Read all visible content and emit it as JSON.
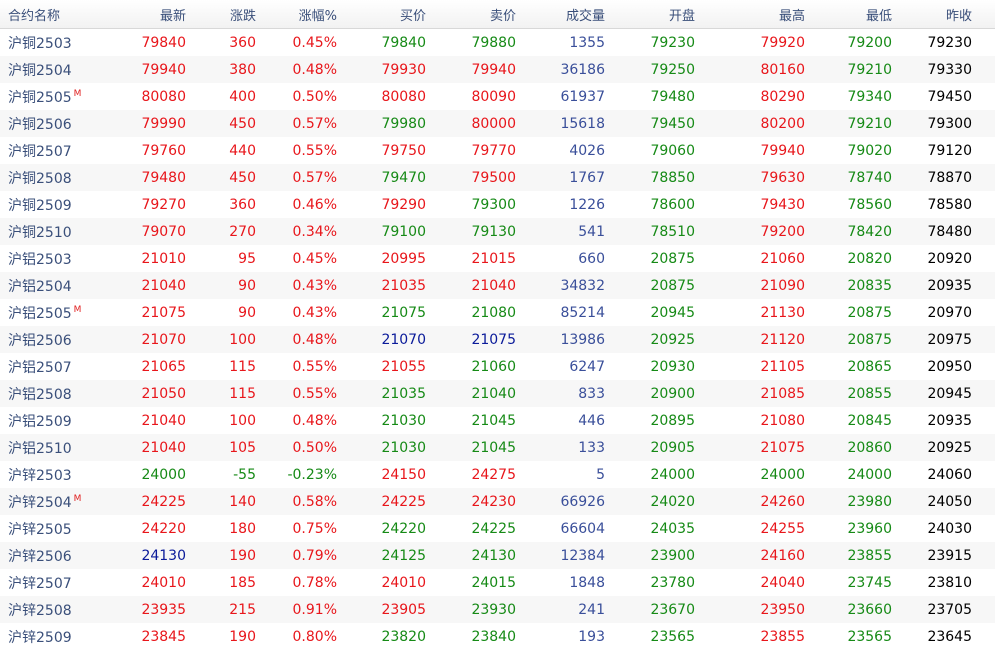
{
  "columns": [
    "合约名称",
    "最新",
    "涨跌",
    "涨幅%",
    "买价",
    "卖价",
    "成交量",
    "开盘",
    "最高",
    "最低",
    "昨收"
  ],
  "colors": {
    "up": "#e8161b",
    "down": "#168a16",
    "volume": "#3a4f9a",
    "flat": "#000000",
    "highlight": "#0b1b9a"
  },
  "rows": [
    {
      "name": "沪铜2503",
      "badge": "",
      "last": "79840",
      "chg": "360",
      "pct": "0.45%",
      "bid": "79840",
      "ask": "79880",
      "vol": "1355",
      "open": "79230",
      "high": "79920",
      "low": "79200",
      "prev": "79230",
      "last_c": "red",
      "chg_c": "red",
      "pct_c": "red",
      "bid_c": "green",
      "ask_c": "green",
      "open_c": "green",
      "high_c": "red",
      "low_c": "green"
    },
    {
      "name": "沪铜2504",
      "badge": "",
      "last": "79940",
      "chg": "380",
      "pct": "0.48%",
      "bid": "79930",
      "ask": "79940",
      "vol": "36186",
      "open": "79250",
      "high": "80160",
      "low": "79210",
      "prev": "79330",
      "last_c": "red",
      "chg_c": "red",
      "pct_c": "red",
      "bid_c": "red",
      "ask_c": "red",
      "open_c": "green",
      "high_c": "red",
      "low_c": "green"
    },
    {
      "name": "沪铜2505",
      "badge": "M",
      "last": "80080",
      "chg": "400",
      "pct": "0.50%",
      "bid": "80080",
      "ask": "80090",
      "vol": "61937",
      "open": "79480",
      "high": "80290",
      "low": "79340",
      "prev": "79450",
      "last_c": "red",
      "chg_c": "red",
      "pct_c": "red",
      "bid_c": "red",
      "ask_c": "red",
      "open_c": "green",
      "high_c": "red",
      "low_c": "green"
    },
    {
      "name": "沪铜2506",
      "badge": "",
      "last": "79990",
      "chg": "450",
      "pct": "0.57%",
      "bid": "79980",
      "ask": "80000",
      "vol": "15618",
      "open": "79450",
      "high": "80200",
      "low": "79210",
      "prev": "79300",
      "last_c": "red",
      "chg_c": "red",
      "pct_c": "red",
      "bid_c": "green",
      "ask_c": "red",
      "open_c": "green",
      "high_c": "red",
      "low_c": "green"
    },
    {
      "name": "沪铜2507",
      "badge": "",
      "last": "79760",
      "chg": "440",
      "pct": "0.55%",
      "bid": "79750",
      "ask": "79770",
      "vol": "4026",
      "open": "79060",
      "high": "79940",
      "low": "79020",
      "prev": "79120",
      "last_c": "red",
      "chg_c": "red",
      "pct_c": "red",
      "bid_c": "red",
      "ask_c": "red",
      "open_c": "green",
      "high_c": "red",
      "low_c": "green"
    },
    {
      "name": "沪铜2508",
      "badge": "",
      "last": "79480",
      "chg": "450",
      "pct": "0.57%",
      "bid": "79470",
      "ask": "79500",
      "vol": "1767",
      "open": "78850",
      "high": "79630",
      "low": "78740",
      "prev": "78870",
      "last_c": "red",
      "chg_c": "red",
      "pct_c": "red",
      "bid_c": "green",
      "ask_c": "red",
      "open_c": "green",
      "high_c": "red",
      "low_c": "green"
    },
    {
      "name": "沪铜2509",
      "badge": "",
      "last": "79270",
      "chg": "360",
      "pct": "0.46%",
      "bid": "79290",
      "ask": "79300",
      "vol": "1226",
      "open": "78600",
      "high": "79430",
      "low": "78560",
      "prev": "78580",
      "last_c": "red",
      "chg_c": "red",
      "pct_c": "red",
      "bid_c": "red",
      "ask_c": "green",
      "open_c": "green",
      "high_c": "red",
      "low_c": "green"
    },
    {
      "name": "沪铜2510",
      "badge": "",
      "last": "79070",
      "chg": "270",
      "pct": "0.34%",
      "bid": "79100",
      "ask": "79130",
      "vol": "541",
      "open": "78510",
      "high": "79200",
      "low": "78420",
      "prev": "78480",
      "last_c": "red",
      "chg_c": "red",
      "pct_c": "red",
      "bid_c": "green",
      "ask_c": "green",
      "open_c": "green",
      "high_c": "red",
      "low_c": "green"
    },
    {
      "name": "沪铝2503",
      "badge": "",
      "last": "21010",
      "chg": "95",
      "pct": "0.45%",
      "bid": "20995",
      "ask": "21015",
      "vol": "660",
      "open": "20875",
      "high": "21060",
      "low": "20820",
      "prev": "20920",
      "last_c": "red",
      "chg_c": "red",
      "pct_c": "red",
      "bid_c": "red",
      "ask_c": "red",
      "open_c": "green",
      "high_c": "red",
      "low_c": "green"
    },
    {
      "name": "沪铝2504",
      "badge": "",
      "last": "21040",
      "chg": "90",
      "pct": "0.43%",
      "bid": "21035",
      "ask": "21040",
      "vol": "34832",
      "open": "20875",
      "high": "21090",
      "low": "20835",
      "prev": "20935",
      "last_c": "red",
      "chg_c": "red",
      "pct_c": "red",
      "bid_c": "red",
      "ask_c": "red",
      "open_c": "green",
      "high_c": "red",
      "low_c": "green"
    },
    {
      "name": "沪铝2505",
      "badge": "M",
      "last": "21075",
      "chg": "90",
      "pct": "0.43%",
      "bid": "21075",
      "ask": "21080",
      "vol": "85214",
      "open": "20945",
      "high": "21130",
      "low": "20875",
      "prev": "20970",
      "last_c": "red",
      "chg_c": "red",
      "pct_c": "red",
      "bid_c": "green",
      "ask_c": "green",
      "open_c": "green",
      "high_c": "red",
      "low_c": "green"
    },
    {
      "name": "沪铝2506",
      "badge": "",
      "last": "21070",
      "chg": "100",
      "pct": "0.48%",
      "bid": "21070",
      "ask": "21075",
      "vol": "13986",
      "open": "20925",
      "high": "21120",
      "low": "20875",
      "prev": "20975",
      "last_c": "red",
      "chg_c": "red",
      "pct_c": "red",
      "bid_c": "navy",
      "ask_c": "navy",
      "open_c": "green",
      "high_c": "red",
      "low_c": "green"
    },
    {
      "name": "沪铝2507",
      "badge": "",
      "last": "21065",
      "chg": "115",
      "pct": "0.55%",
      "bid": "21055",
      "ask": "21060",
      "vol": "6247",
      "open": "20930",
      "high": "21105",
      "low": "20865",
      "prev": "20950",
      "last_c": "red",
      "chg_c": "red",
      "pct_c": "red",
      "bid_c": "red",
      "ask_c": "green",
      "open_c": "green",
      "high_c": "red",
      "low_c": "green"
    },
    {
      "name": "沪铝2508",
      "badge": "",
      "last": "21050",
      "chg": "115",
      "pct": "0.55%",
      "bid": "21035",
      "ask": "21040",
      "vol": "833",
      "open": "20900",
      "high": "21085",
      "low": "20855",
      "prev": "20945",
      "last_c": "red",
      "chg_c": "red",
      "pct_c": "red",
      "bid_c": "green",
      "ask_c": "green",
      "open_c": "green",
      "high_c": "red",
      "low_c": "green"
    },
    {
      "name": "沪铝2509",
      "badge": "",
      "last": "21040",
      "chg": "100",
      "pct": "0.48%",
      "bid": "21030",
      "ask": "21045",
      "vol": "446",
      "open": "20895",
      "high": "21080",
      "low": "20845",
      "prev": "20935",
      "last_c": "red",
      "chg_c": "red",
      "pct_c": "red",
      "bid_c": "green",
      "ask_c": "green",
      "open_c": "green",
      "high_c": "red",
      "low_c": "green"
    },
    {
      "name": "沪铝2510",
      "badge": "",
      "last": "21040",
      "chg": "105",
      "pct": "0.50%",
      "bid": "21030",
      "ask": "21045",
      "vol": "133",
      "open": "20905",
      "high": "21075",
      "low": "20860",
      "prev": "20925",
      "last_c": "red",
      "chg_c": "red",
      "pct_c": "red",
      "bid_c": "green",
      "ask_c": "green",
      "open_c": "green",
      "high_c": "red",
      "low_c": "green"
    },
    {
      "name": "沪锌2503",
      "badge": "",
      "last": "24000",
      "chg": "-55",
      "pct": "-0.23%",
      "bid": "24150",
      "ask": "24275",
      "vol": "5",
      "open": "24000",
      "high": "24000",
      "low": "24000",
      "prev": "24060",
      "last_c": "green",
      "chg_c": "green",
      "pct_c": "green",
      "bid_c": "red",
      "ask_c": "red",
      "open_c": "green",
      "high_c": "green",
      "low_c": "green"
    },
    {
      "name": "沪锌2504",
      "badge": "M",
      "last": "24225",
      "chg": "140",
      "pct": "0.58%",
      "bid": "24225",
      "ask": "24230",
      "vol": "66926",
      "open": "24020",
      "high": "24260",
      "low": "23980",
      "prev": "24050",
      "last_c": "red",
      "chg_c": "red",
      "pct_c": "red",
      "bid_c": "red",
      "ask_c": "red",
      "open_c": "green",
      "high_c": "red",
      "low_c": "green"
    },
    {
      "name": "沪锌2505",
      "badge": "",
      "last": "24220",
      "chg": "180",
      "pct": "0.75%",
      "bid": "24220",
      "ask": "24225",
      "vol": "66604",
      "open": "24035",
      "high": "24255",
      "low": "23960",
      "prev": "24030",
      "last_c": "red",
      "chg_c": "red",
      "pct_c": "red",
      "bid_c": "green",
      "ask_c": "green",
      "open_c": "green",
      "high_c": "red",
      "low_c": "green"
    },
    {
      "name": "沪锌2506",
      "badge": "",
      "last": "24130",
      "chg": "190",
      "pct": "0.79%",
      "bid": "24125",
      "ask": "24130",
      "vol": "12384",
      "open": "23900",
      "high": "24160",
      "low": "23855",
      "prev": "23915",
      "last_c": "navy",
      "chg_c": "red",
      "pct_c": "red",
      "bid_c": "green",
      "ask_c": "green",
      "open_c": "green",
      "high_c": "red",
      "low_c": "green"
    },
    {
      "name": "沪锌2507",
      "badge": "",
      "last": "24010",
      "chg": "185",
      "pct": "0.78%",
      "bid": "24010",
      "ask": "24015",
      "vol": "1848",
      "open": "23780",
      "high": "24040",
      "low": "23745",
      "prev": "23810",
      "last_c": "red",
      "chg_c": "red",
      "pct_c": "red",
      "bid_c": "red",
      "ask_c": "green",
      "open_c": "green",
      "high_c": "red",
      "low_c": "green"
    },
    {
      "name": "沪锌2508",
      "badge": "",
      "last": "23935",
      "chg": "215",
      "pct": "0.91%",
      "bid": "23905",
      "ask": "23930",
      "vol": "241",
      "open": "23670",
      "high": "23950",
      "low": "23660",
      "prev": "23705",
      "last_c": "red",
      "chg_c": "red",
      "pct_c": "red",
      "bid_c": "red",
      "ask_c": "green",
      "open_c": "green",
      "high_c": "red",
      "low_c": "green"
    },
    {
      "name": "沪锌2509",
      "badge": "",
      "last": "23845",
      "chg": "190",
      "pct": "0.80%",
      "bid": "23820",
      "ask": "23840",
      "vol": "193",
      "open": "23565",
      "high": "23855",
      "low": "23565",
      "prev": "23645",
      "last_c": "red",
      "chg_c": "red",
      "pct_c": "red",
      "bid_c": "green",
      "ask_c": "green",
      "open_c": "green",
      "high_c": "red",
      "low_c": "green"
    }
  ]
}
